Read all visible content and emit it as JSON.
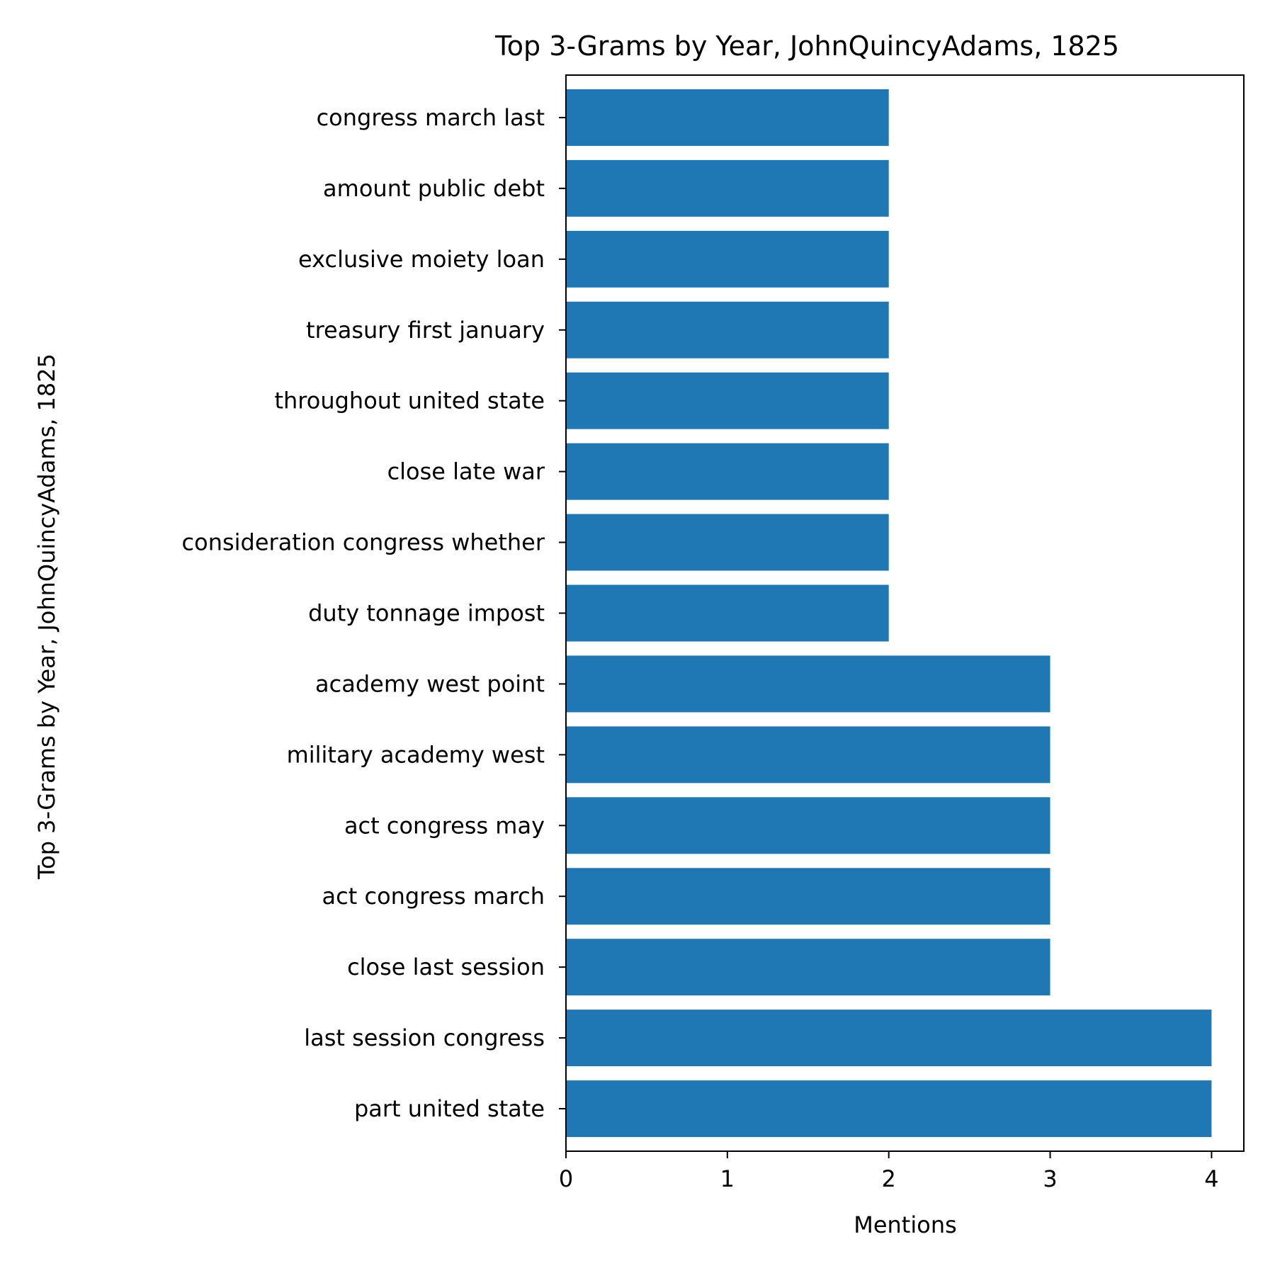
{
  "chart_data": {
    "type": "bar",
    "orientation": "horizontal",
    "title": "Top 3-Grams by Year, JohnQuincyAdams, 1825",
    "xlabel": "Mentions",
    "ylabel": "Top 3-Grams by Year, JohnQuincyAdams, 1825",
    "xlim": [
      0,
      4.2
    ],
    "xticks": [
      0,
      1,
      2,
      3,
      4
    ],
    "grid": false,
    "bar_color": "#1f77b4",
    "categories": [
      "part united state",
      "last session congress",
      "close last session",
      "act congress march",
      "act congress may",
      "military academy west",
      "academy west point",
      "duty tonnage impost",
      "consideration congress whether",
      "close late war",
      "throughout united state",
      "treasury first january",
      "exclusive moiety loan",
      "amount public debt",
      "congress march last"
    ],
    "values": [
      4,
      4,
      3,
      3,
      3,
      3,
      3,
      2,
      2,
      2,
      2,
      2,
      2,
      2,
      2
    ]
  }
}
